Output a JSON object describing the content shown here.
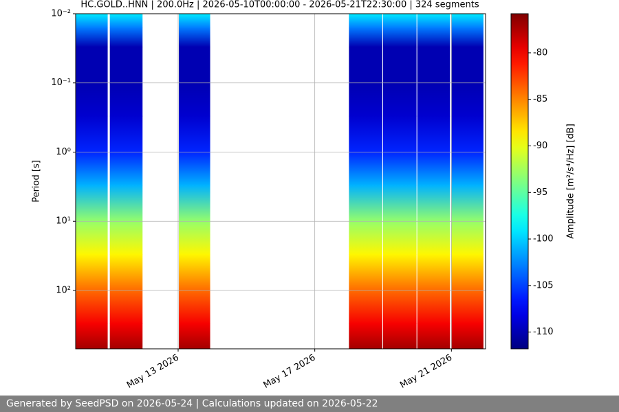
{
  "chart_data": {
    "type": "spectrogram",
    "title": "HC.GOLD..HNN | 200.0Hz | 2026-05-10T00:00:00 - 2026-05-21T22:30:00 | 324 segments",
    "ylabel": "Period [s]",
    "colorbar_label": "Amplitude [m²/s⁴/Hz] [dB]",
    "xlim": [
      "2026-05-10T00:00:00",
      "2026-05-22T00:00:00"
    ],
    "xticks": [
      {
        "value": "2026-05-13T00:00:00",
        "label": "May 13 2026"
      },
      {
        "value": "2026-05-17T00:00:00",
        "label": "May 17 2026"
      },
      {
        "value": "2026-05-21T00:00:00",
        "label": "May 21 2026"
      }
    ],
    "ylim": [
      0.01,
      698
    ],
    "yscale": "log",
    "yinverted": true,
    "yticks": [
      {
        "value": 0.01,
        "label": "10⁻²"
      },
      {
        "value": 0.1,
        "label": "10⁻¹"
      },
      {
        "value": 1,
        "label": "10⁰"
      },
      {
        "value": 10,
        "label": "10¹"
      },
      {
        "value": 100,
        "label": "10²"
      }
    ],
    "grid": true,
    "colormap": "jet",
    "clim": [
      -111.8,
      -75.8
    ],
    "cticks": [
      -80,
      -85,
      -90,
      -95,
      -100,
      -105,
      -110
    ],
    "segments": [
      {
        "start": "2026-05-10T00:00:00",
        "end": "2026-05-10T22:30:00"
      },
      {
        "start": "2026-05-11T00:00:00",
        "end": "2026-05-11T23:00:00"
      },
      {
        "start": "2026-05-13T00:30:00",
        "end": "2026-05-13T22:30:00"
      },
      {
        "start": "2026-05-18T00:00:00",
        "end": "2026-05-18T23:30:00"
      },
      {
        "start": "2026-05-19T00:00:00",
        "end": "2026-05-19T23:30:00"
      },
      {
        "start": "2026-05-20T00:00:00",
        "end": "2026-05-20T23:00:00"
      },
      {
        "start": "2026-05-21T00:00:00",
        "end": "2026-05-21T22:30:00"
      }
    ],
    "profile": {
      "periods": [
        0.01,
        0.016,
        0.03,
        0.1,
        0.3,
        1,
        3,
        10,
        30,
        100,
        300,
        698
      ],
      "amplitudes": [
        -99,
        -103,
        -110,
        -110,
        -109,
        -106,
        -101,
        -93,
        -89,
        -84,
        -80,
        -77
      ]
    }
  },
  "footer": "Generated by SeedPSD on 2026-05-24 | Calculations updated on 2026-05-22"
}
